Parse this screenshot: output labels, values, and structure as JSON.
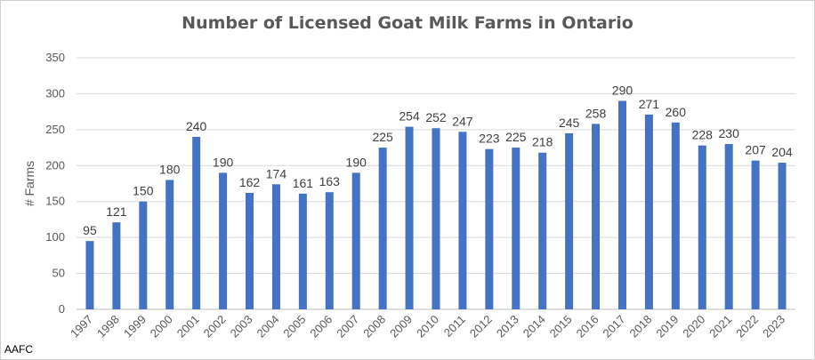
{
  "chart_data": {
    "type": "bar",
    "title": "Number of Licensed Goat Milk Farms in Ontario",
    "xlabel": "",
    "ylabel": "# Farms",
    "ylim": [
      0,
      350
    ],
    "yticks": [
      "0",
      "50",
      "100",
      "150",
      "200",
      "250",
      "300",
      "350"
    ],
    "grid": true,
    "categories": [
      "1997",
      "1998",
      "1999",
      "2000",
      "2001",
      "2002",
      "2003",
      "2004",
      "2005",
      "2006",
      "2007",
      "2008",
      "2009",
      "2010",
      "2011",
      "2012",
      "2013",
      "2014",
      "2015",
      "2016",
      "2017",
      "2018",
      "2019",
      "2020",
      "2021",
      "2022",
      "2023"
    ],
    "values": [
      95,
      121,
      150,
      180,
      240,
      190,
      162,
      174,
      161,
      163,
      190,
      225,
      254,
      252,
      247,
      223,
      225,
      218,
      245,
      258,
      290,
      271,
      260,
      228,
      230,
      207,
      204
    ],
    "bar_color": "#4472C4",
    "grid_color": "#d9d9d9",
    "axis_text_color": "#595959",
    "label_color": "#404040"
  },
  "source": "AAFC"
}
